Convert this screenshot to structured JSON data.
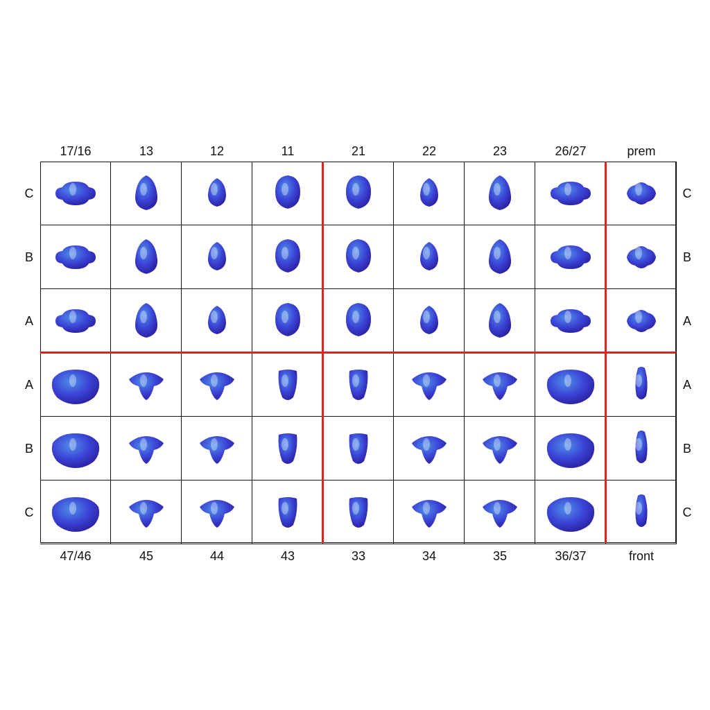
{
  "top_labels": [
    "17/16",
    "13",
    "12",
    "11",
    "21",
    "22",
    "23",
    "26/27",
    "prem"
  ],
  "bottom_labels": [
    "47/46",
    "45",
    "44",
    "43",
    "33",
    "34",
    "35",
    "36/37",
    "front"
  ],
  "left_rows": [
    "C",
    "B",
    "A",
    "A",
    "B",
    "C"
  ],
  "right_rows": [
    "C",
    "B",
    "A",
    "A",
    "B",
    "C"
  ],
  "tooth_types": [
    [
      "molar",
      "canine",
      "lateral",
      "central",
      "central",
      "lateral",
      "canine",
      "molar",
      "premolar"
    ],
    [
      "molar",
      "canine",
      "lateral",
      "central",
      "central",
      "lateral",
      "canine",
      "molar",
      "premolar"
    ],
    [
      "molar",
      "canine",
      "lateral",
      "central",
      "central",
      "lateral",
      "canine",
      "molar",
      "premolar"
    ],
    [
      "lower-molar",
      "lower-premolar",
      "lower-premolar",
      "lower-incisor",
      "lower-incisor",
      "lower-premolar",
      "lower-premolar",
      "lower-molar",
      "front-view"
    ],
    [
      "lower-molar",
      "lower-premolar",
      "lower-premolar",
      "lower-incisor",
      "lower-incisor",
      "lower-premolar",
      "lower-premolar",
      "lower-molar",
      "front-view"
    ],
    [
      "lower-molar",
      "lower-premolar",
      "lower-premolar",
      "lower-incisor",
      "lower-incisor",
      "lower-premolar",
      "lower-premolar",
      "lower-molar",
      "front-view"
    ]
  ],
  "colors": {
    "tooth_dark": "#2a1f9e",
    "tooth_mid": "#3b44d6",
    "tooth_light": "#4f8ee8",
    "divider": "#d9231f",
    "grid_line": "#111111"
  }
}
